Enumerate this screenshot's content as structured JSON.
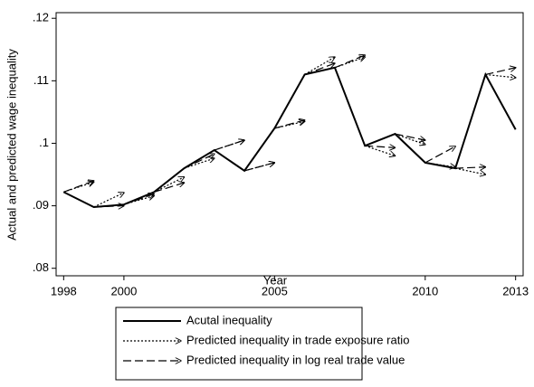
{
  "chart_data": {
    "type": "line",
    "y_label": "Actual and predicted wage inequality",
    "x_label": "Year",
    "x": [
      1998,
      1999,
      2000,
      2001,
      2002,
      2003,
      2004,
      2005,
      2006,
      2007,
      2008,
      2009,
      2010,
      2011,
      2012,
      2013
    ],
    "series": [
      {
        "name": "Acutal inequality",
        "style": "solid",
        "color": "#000000",
        "values": [
          0.0922,
          0.0898,
          0.0902,
          0.0922,
          0.096,
          0.0989,
          0.0956,
          0.1024,
          0.111,
          0.1121,
          0.0996,
          0.1015,
          0.0969,
          0.096,
          0.111,
          0.1022
        ]
      },
      {
        "name": "Predicted inequality in trade exposure ratio",
        "style": "dotted",
        "color": "#000000",
        "values": [
          null,
          0.0938,
          0.0921,
          0.0916,
          0.0946,
          0.0976,
          0.1005,
          0.0969,
          0.1035,
          0.1138,
          0.1138,
          0.098,
          0.0998,
          0.0962,
          0.095,
          0.1105
        ]
      },
      {
        "name": "Predicted inequality in log real trade value",
        "style": "dashed",
        "color": "#000000",
        "values": [
          null,
          0.094,
          0.09,
          0.0919,
          0.0937,
          0.0983,
          0.1005,
          0.0969,
          0.1037,
          0.1128,
          0.1141,
          0.0993,
          0.1005,
          0.0995,
          0.0962,
          0.1121
        ]
      }
    ],
    "xlim": [
      1997.75,
      2013.25
    ],
    "ylim": [
      0.0788,
      0.1209
    ],
    "xticks": [
      1998,
      2000,
      2005,
      2010,
      2013
    ],
    "yticks": [
      {
        "value": 0.08,
        "label": ".08"
      },
      {
        "value": 0.09,
        "label": ".09"
      },
      {
        "value": 0.1,
        "label": ".1"
      },
      {
        "value": 0.11,
        "label": ".11"
      },
      {
        "value": 0.12,
        "label": ".12"
      }
    ],
    "grid": false
  }
}
